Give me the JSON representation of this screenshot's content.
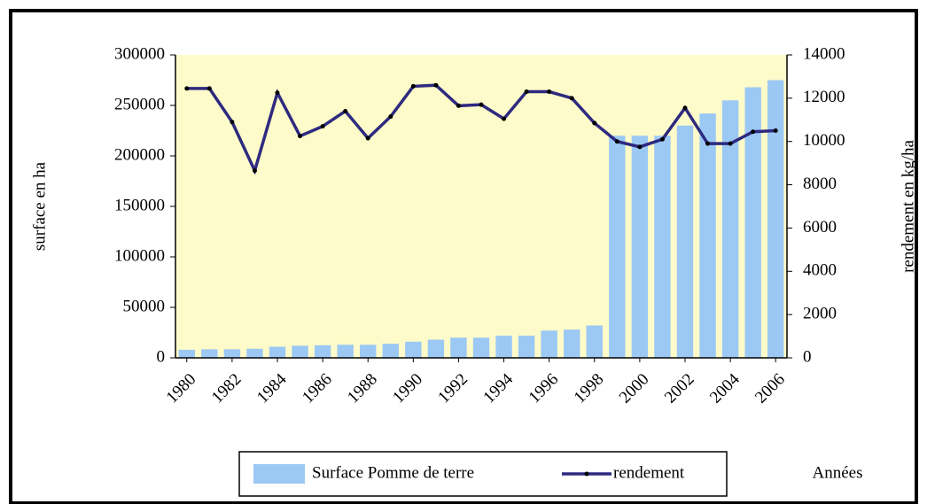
{
  "chart_data": {
    "type": "bar",
    "categories": [
      "1980",
      null,
      "1982",
      null,
      "1984",
      null,
      "1986",
      null,
      "1988",
      null,
      "1990",
      null,
      "1992",
      null,
      "1994",
      null,
      "1996",
      null,
      "1998",
      null,
      "2000",
      null,
      "2002",
      null,
      "2004",
      null,
      "2006"
    ],
    "series": [
      {
        "name": "Surface Pomme de terre",
        "type": "bar",
        "color": "#9cc8f4",
        "values": [
          8000,
          8500,
          8500,
          9000,
          11000,
          12000,
          12500,
          13000,
          13000,
          14000,
          16000,
          18000,
          20000,
          20000,
          22000,
          22000,
          27000,
          28000,
          32000,
          220000,
          220000,
          220000,
          230000,
          242000,
          255000,
          268000,
          275000
        ]
      },
      {
        "name": "rendement",
        "type": "line",
        "axis": "y2",
        "color": "#2e2a80",
        "values": [
          12450,
          12450,
          10900,
          8650,
          12250,
          10250,
          10700,
          11400,
          10150,
          11150,
          12550,
          12600,
          11650,
          11700,
          11050,
          12300,
          12300,
          12000,
          10850,
          10000,
          9750,
          10100,
          11550,
          9900,
          9900,
          10450,
          10500
        ]
      }
    ],
    "ylabel": "surface en ha",
    "y2label": "rendement en kg/ha",
    "xlabel": "Années",
    "ylim": [
      0,
      300000
    ],
    "yticks": [
      0,
      50000,
      100000,
      150000,
      200000,
      250000,
      300000
    ],
    "y2lim": [
      0,
      14000
    ],
    "y2ticks": [
      0,
      2000,
      4000,
      6000,
      8000,
      10000,
      12000,
      14000
    ],
    "grid": false,
    "legend": "bottom"
  }
}
